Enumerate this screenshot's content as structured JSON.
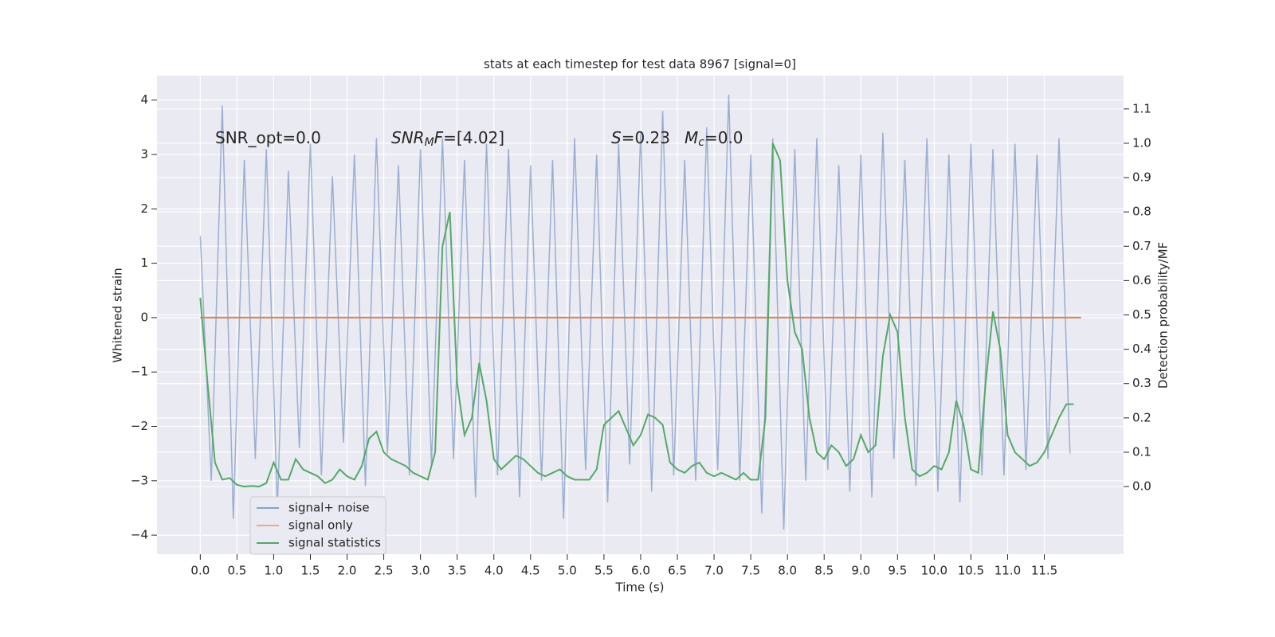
{
  "chart_data": {
    "type": "line",
    "title": "stats at each timestep for test data 8967 [signal=0]",
    "xlabel": "Time (s)",
    "ylabel": "Whitened strain",
    "y2label": "Detection probability/MF",
    "annotations": [
      {
        "parts": [
          "SNR_opt=0.0"
        ]
      },
      {
        "parts": [
          "SNR",
          "M",
          "F",
          "=[4.02]"
        ]
      },
      {
        "parts": [
          "S",
          "=0.23",
          "M",
          "c",
          "=0.0"
        ]
      }
    ],
    "xlim": [
      -0.59,
      12.58
    ],
    "ylim": [
      -4.35,
      4.45
    ],
    "y2lim": [
      -0.197,
      1.197
    ],
    "xticks": [
      {
        "value": 0,
        "label": "0.0"
      },
      {
        "value": 0.5,
        "label": "0.5"
      },
      {
        "value": 1,
        "label": "1.0"
      },
      {
        "value": 1.5,
        "label": "1.5"
      },
      {
        "value": 2,
        "label": "2.0"
      },
      {
        "value": 2.5,
        "label": "2.5"
      },
      {
        "value": 3,
        "label": "3.0"
      },
      {
        "value": 3.5,
        "label": "3.5"
      },
      {
        "value": 4,
        "label": "4.0"
      },
      {
        "value": 4.5,
        "label": "4.5"
      },
      {
        "value": 5,
        "label": "5.0"
      },
      {
        "value": 5.5,
        "label": "5.5"
      },
      {
        "value": 6,
        "label": "6.0"
      },
      {
        "value": 6.5,
        "label": "6.5"
      },
      {
        "value": 7,
        "label": "7.0"
      },
      {
        "value": 7.5,
        "label": "7.5"
      },
      {
        "value": 8,
        "label": "8.0"
      },
      {
        "value": 8.5,
        "label": "8.5"
      },
      {
        "value": 9,
        "label": "9.0"
      },
      {
        "value": 9.5,
        "label": "9.5"
      },
      {
        "value": 10,
        "label": "10.0"
      },
      {
        "value": 10.5,
        "label": "10.5"
      },
      {
        "value": 11,
        "label": "11.0"
      },
      {
        "value": 11.5,
        "label": "11.5"
      }
    ],
    "yticks": [
      {
        "value": -4,
        "label": "−4"
      },
      {
        "value": -3,
        "label": "−3"
      },
      {
        "value": -2,
        "label": "−2"
      },
      {
        "value": -1,
        "label": "−1"
      },
      0,
      1,
      2,
      3,
      4
    ],
    "y2ticks": [
      {
        "value": 0,
        "label": "0.0"
      },
      {
        "value": 0.1,
        "label": "0.1"
      },
      {
        "value": 0.2,
        "label": "0.2"
      },
      {
        "value": 0.3,
        "label": "0.3"
      },
      {
        "value": 0.4,
        "label": "0.4"
      },
      {
        "value": 0.5,
        "label": "0.5"
      },
      {
        "value": 0.6,
        "label": "0.6"
      },
      {
        "value": 0.7,
        "label": "0.7"
      },
      {
        "value": 0.8,
        "label": "0.8"
      },
      {
        "value": 0.9,
        "label": "0.9"
      },
      {
        "value": 1,
        "label": "1.0"
      },
      {
        "value": 1.1,
        "label": "1.1"
      }
    ],
    "grid": true,
    "legend": "lower left",
    "series": [
      {
        "name": "signal+ noise",
        "color": "#4c72b0",
        "x": [
          0,
          0.15,
          0.3,
          0.45,
          0.6,
          0.75,
          0.9,
          1.05,
          1.2,
          1.35,
          1.5,
          1.65,
          1.8,
          1.95,
          2.1,
          2.25,
          2.4,
          2.55,
          2.7,
          2.85,
          3,
          3.15,
          3.3,
          3.45,
          3.6,
          3.75,
          3.9,
          4.05,
          4.2,
          4.35,
          4.5,
          4.65,
          4.8,
          4.95,
          5.1,
          5.25,
          5.4,
          5.55,
          5.7,
          5.85,
          6,
          6.15,
          6.3,
          6.45,
          6.6,
          6.75,
          6.9,
          7.05,
          7.2,
          7.35,
          7.5,
          7.65,
          7.8,
          7.95,
          8.1,
          8.25,
          8.4,
          8.55,
          8.7,
          8.85,
          9,
          9.15,
          9.3,
          9.45,
          9.6,
          9.75,
          9.9,
          10.05,
          10.2,
          10.35,
          10.5,
          10.65,
          10.8,
          10.95,
          11.1,
          11.25,
          11.4,
          11.55,
          11.7,
          11.85
        ],
        "values": [
          1.5,
          -3.0,
          3.9,
          -3.7,
          2.9,
          -2.6,
          3.1,
          -3.5,
          2.7,
          -2.4,
          3.2,
          -2.9,
          2.6,
          -2.3,
          3.0,
          -3.1,
          3.3,
          -2.5,
          2.8,
          -2.9,
          3.1,
          -2.7,
          3.3,
          -2.6,
          2.9,
          -3.3,
          3.2,
          -2.9,
          3.1,
          -3.3,
          2.8,
          -3.0,
          2.9,
          -3.7,
          3.3,
          -2.8,
          3.0,
          -3.4,
          3.2,
          -2.7,
          3.4,
          -3.2,
          3.8,
          -2.9,
          2.9,
          -3.0,
          3.5,
          -2.8,
          4.1,
          -3.0,
          3.0,
          -3.6,
          3.3,
          -3.9,
          3.1,
          -3.0,
          3.3,
          -2.8,
          2.8,
          -3.2,
          3.0,
          -3.3,
          3.4,
          -2.6,
          2.9,
          -3.1,
          3.3,
          -3.2,
          3.0,
          -3.4,
          3.2,
          -2.9,
          3.1,
          -2.9,
          3.2,
          -2.8,
          3.0,
          -2.6,
          3.3,
          -2.5
        ]
      },
      {
        "name": "signal only",
        "color": "#dd8452",
        "x": [
          0,
          12
        ],
        "values": [
          0,
          0
        ]
      },
      {
        "name": "signal statistics",
        "color": "#55a868",
        "axis": "y2",
        "x": [
          0,
          0.1,
          0.2,
          0.3,
          0.4,
          0.5,
          0.6,
          0.7,
          0.8,
          0.9,
          1,
          1.1,
          1.2,
          1.3,
          1.4,
          1.5,
          1.6,
          1.7,
          1.8,
          1.9,
          2,
          2.1,
          2.2,
          2.3,
          2.4,
          2.5,
          2.6,
          2.7,
          2.8,
          2.9,
          3,
          3.1,
          3.2,
          3.3,
          3.4,
          3.5,
          3.6,
          3.7,
          3.8,
          3.9,
          4,
          4.1,
          4.2,
          4.3,
          4.4,
          4.5,
          4.6,
          4.7,
          4.8,
          4.9,
          5,
          5.1,
          5.2,
          5.3,
          5.4,
          5.5,
          5.6,
          5.7,
          5.8,
          5.9,
          6,
          6.1,
          6.2,
          6.3,
          6.4,
          6.5,
          6.6,
          6.7,
          6.8,
          6.9,
          7,
          7.1,
          7.2,
          7.3,
          7.4,
          7.5,
          7.6,
          7.7,
          7.8,
          7.9,
          8,
          8.1,
          8.2,
          8.3,
          8.4,
          8.5,
          8.6,
          8.7,
          8.8,
          8.9,
          9,
          9.1,
          9.2,
          9.3,
          9.4,
          9.5,
          9.6,
          9.7,
          9.8,
          9.9,
          10,
          10.1,
          10.2,
          10.3,
          10.4,
          10.5,
          10.6,
          10.7,
          10.8,
          10.9,
          11,
          11.1,
          11.2,
          11.3,
          11.4,
          11.5,
          11.6,
          11.7,
          11.8,
          11.9
        ],
        "values": [
          0.55,
          0.3,
          0.07,
          0.02,
          0.025,
          0.005,
          0,
          0.002,
          0,
          0.01,
          0.07,
          0.02,
          0.02,
          0.08,
          0.05,
          0.04,
          0.03,
          0.01,
          0.02,
          0.05,
          0.03,
          0.02,
          0.06,
          0.14,
          0.16,
          0.1,
          0.08,
          0.07,
          0.06,
          0.04,
          0.03,
          0.02,
          0.1,
          0.7,
          0.8,
          0.3,
          0.15,
          0.2,
          0.36,
          0.25,
          0.08,
          0.05,
          0.07,
          0.09,
          0.08,
          0.06,
          0.04,
          0.03,
          0.04,
          0.05,
          0.03,
          0.02,
          0.02,
          0.02,
          0.05,
          0.18,
          0.2,
          0.22,
          0.17,
          0.12,
          0.15,
          0.21,
          0.2,
          0.18,
          0.07,
          0.05,
          0.04,
          0.06,
          0.07,
          0.04,
          0.03,
          0.04,
          0.03,
          0.02,
          0.04,
          0.02,
          0.02,
          0.2,
          1.0,
          0.95,
          0.6,
          0.45,
          0.4,
          0.2,
          0.1,
          0.08,
          0.12,
          0.1,
          0.06,
          0.08,
          0.15,
          0.1,
          0.12,
          0.38,
          0.5,
          0.45,
          0.2,
          0.05,
          0.03,
          0.04,
          0.06,
          0.05,
          0.1,
          0.25,
          0.18,
          0.05,
          0.04,
          0.3,
          0.51,
          0.4,
          0.15,
          0.1,
          0.08,
          0.06,
          0.07,
          0.1,
          0.15,
          0.2,
          0.24,
          0.24
        ]
      }
    ]
  }
}
